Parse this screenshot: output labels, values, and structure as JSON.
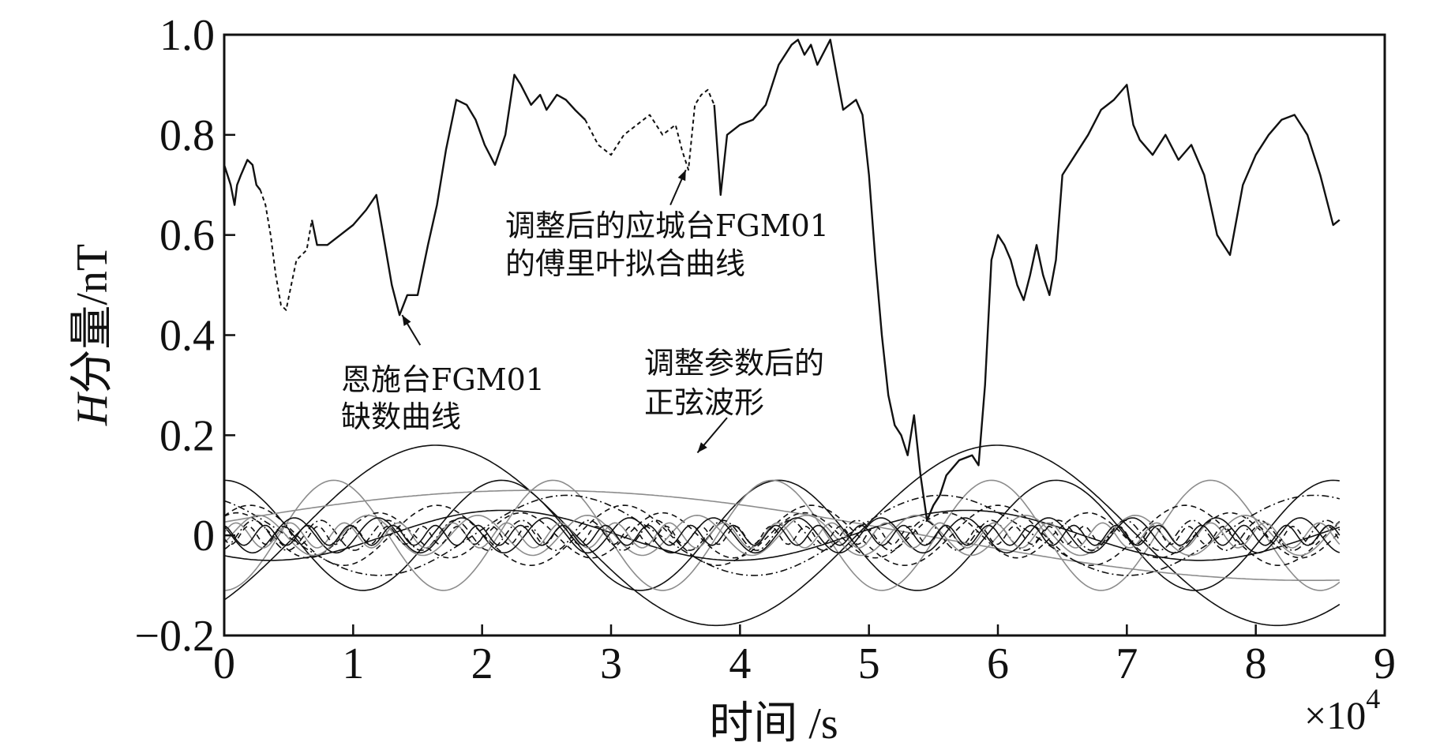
{
  "chart_data": {
    "type": "line",
    "title": "",
    "xlabel": "时间 /s",
    "ylabel_italic": "H",
    "ylabel_rest": "分量/nT",
    "x_multiplier_prefix": "×10",
    "x_multiplier_exp": "4",
    "xlim": [
      0,
      9
    ],
    "ylim": [
      -0.2,
      1.0
    ],
    "xticks": [
      0,
      1,
      2,
      3,
      4,
      5,
      6,
      7,
      8,
      9
    ],
    "xtick_labels": [
      "0",
      "1",
      "2",
      "3",
      "4",
      "5",
      "6",
      "7",
      "8",
      "9"
    ],
    "yticks": [
      -0.2,
      0,
      0.2,
      0.4,
      0.6,
      0.8,
      1.0
    ],
    "ytick_labels": [
      "−0.2",
      "0",
      "0.2",
      "0.4",
      "0.6",
      "0.8",
      "1.0"
    ],
    "grid": false,
    "legend": "none",
    "annotations": [
      {
        "lines": [
          "调整后的应城台FGM01",
          "的傅里叶拟合曲线"
        ],
        "arrow_to": [
          3.58,
          0.73
        ]
      },
      {
        "lines": [
          "恩施台FGM01",
          "缺数曲线"
        ],
        "arrow_to": [
          1.38,
          0.44
        ]
      },
      {
        "lines": [
          "调整参数后的",
          "正弦波形"
        ],
        "arrow_to": [
          3.67,
          0.165
        ]
      }
    ],
    "series": [
      {
        "role": "main-observed",
        "style": "solid-black",
        "x": [
          0,
          0.05,
          0.08,
          0.1,
          0.13,
          0.18,
          0.22,
          0.25,
          0.28
        ],
        "y": [
          0.74,
          0.7,
          0.66,
          0.7,
          0.72,
          0.75,
          0.74,
          0.7,
          0.69
        ]
      },
      {
        "role": "fourier-fit",
        "style": "dashed-black",
        "x": [
          0.28,
          0.32,
          0.36,
          0.4,
          0.44,
          0.48,
          0.52,
          0.56,
          0.6,
          0.64,
          0.68
        ],
        "y": [
          0.69,
          0.66,
          0.6,
          0.52,
          0.46,
          0.45,
          0.5,
          0.55,
          0.56,
          0.57,
          0.63
        ]
      },
      {
        "role": "main-observed",
        "style": "solid-black",
        "x": [
          0.68,
          0.72,
          0.8,
          0.9,
          1.0,
          1.1,
          1.18,
          1.22,
          1.3,
          1.36,
          1.42,
          1.5,
          1.58,
          1.65,
          1.72,
          1.8,
          1.88,
          1.95,
          2.02,
          2.1,
          2.18,
          2.25,
          2.3,
          2.38,
          2.45,
          2.5,
          2.58,
          2.65,
          2.72,
          2.8
        ],
        "y": [
          0.63,
          0.58,
          0.58,
          0.6,
          0.62,
          0.65,
          0.68,
          0.62,
          0.5,
          0.44,
          0.48,
          0.48,
          0.58,
          0.66,
          0.77,
          0.87,
          0.86,
          0.83,
          0.78,
          0.74,
          0.8,
          0.92,
          0.9,
          0.86,
          0.88,
          0.85,
          0.88,
          0.87,
          0.85,
          0.83
        ]
      },
      {
        "role": "fourier-fit",
        "style": "dashed-black",
        "x": [
          2.8,
          2.9,
          3.0,
          3.1,
          3.2,
          3.3,
          3.4,
          3.5,
          3.55,
          3.6,
          3.65,
          3.7,
          3.75,
          3.8
        ],
        "y": [
          0.83,
          0.78,
          0.76,
          0.8,
          0.82,
          0.84,
          0.8,
          0.82,
          0.77,
          0.73,
          0.86,
          0.88,
          0.89,
          0.86
        ]
      },
      {
        "role": "main-observed",
        "style": "solid-black",
        "x": [
          3.8,
          3.85,
          3.9,
          4.0,
          4.1,
          4.2,
          4.3,
          4.4,
          4.45,
          4.5,
          4.55,
          4.6,
          4.7,
          4.75,
          4.8,
          4.9,
          4.95,
          5.0,
          5.05,
          5.1,
          5.15,
          5.2,
          5.25,
          5.3,
          5.35,
          5.4,
          5.45,
          5.5,
          5.55,
          5.6,
          5.7,
          5.8,
          5.85,
          5.9,
          5.95,
          6.0,
          6.05,
          6.1,
          6.15,
          6.2,
          6.25,
          6.3,
          6.35,
          6.4,
          6.45,
          6.5,
          6.6,
          6.7,
          6.8,
          6.9,
          7.0,
          7.05,
          7.1,
          7.2,
          7.3,
          7.4,
          7.5,
          7.6,
          7.7,
          7.8,
          7.9,
          8.0,
          8.1,
          8.2,
          8.3,
          8.4,
          8.5,
          8.6,
          8.65
        ],
        "y": [
          0.86,
          0.68,
          0.8,
          0.82,
          0.83,
          0.86,
          0.94,
          0.98,
          0.99,
          0.96,
          0.98,
          0.94,
          0.99,
          0.92,
          0.85,
          0.87,
          0.84,
          0.72,
          0.55,
          0.4,
          0.28,
          0.22,
          0.2,
          0.16,
          0.24,
          0.12,
          0.03,
          0.06,
          0.08,
          0.12,
          0.15,
          0.16,
          0.14,
          0.3,
          0.55,
          0.6,
          0.58,
          0.55,
          0.5,
          0.47,
          0.52,
          0.58,
          0.52,
          0.48,
          0.55,
          0.72,
          0.76,
          0.8,
          0.85,
          0.87,
          0.9,
          0.82,
          0.79,
          0.76,
          0.8,
          0.75,
          0.78,
          0.72,
          0.6,
          0.56,
          0.7,
          0.76,
          0.8,
          0.83,
          0.84,
          0.8,
          0.72,
          0.62,
          0.63
        ]
      }
    ],
    "sine_components": [
      {
        "amplitude": 0.18,
        "period": 4.35,
        "phase": -0.8,
        "style": "solid-black"
      },
      {
        "amplitude": 0.11,
        "period": 2.15,
        "phase": 1.57,
        "style": "solid-black"
      },
      {
        "amplitude": 0.09,
        "period": 12.0,
        "phase": 0.3,
        "style": "solid-gray"
      },
      {
        "amplitude": 0.11,
        "period": 1.7,
        "phase": -1.57,
        "style": "solid-gray"
      },
      {
        "amplitude": 0.08,
        "period": 2.9,
        "phase": 2.1,
        "style": "dashdot-black"
      },
      {
        "amplitude": 0.06,
        "period": 1.45,
        "phase": 0.7,
        "style": "dashed-black"
      },
      {
        "amplitude": 0.05,
        "period": 3.6,
        "phase": -2.2,
        "style": "solid-black"
      },
      {
        "amplitude": 0.045,
        "period": 1.1,
        "phase": 1.0,
        "style": "dashed-black"
      },
      {
        "amplitude": 0.04,
        "period": 0.85,
        "phase": -0.4,
        "style": "solid-gray"
      },
      {
        "amplitude": 0.035,
        "period": 0.65,
        "phase": 2.6,
        "style": "solid-black"
      },
      {
        "amplitude": 0.03,
        "period": 0.52,
        "phase": -1.2,
        "style": "dashdot-black"
      },
      {
        "amplitude": 0.025,
        "period": 0.42,
        "phase": 0.2,
        "style": "solid-gray"
      },
      {
        "amplitude": 0.02,
        "period": 0.33,
        "phase": 1.8,
        "style": "solid-black"
      },
      {
        "amplitude": 0.018,
        "period": 0.27,
        "phase": -2.8,
        "style": "dashed-black"
      }
    ],
    "colors": {
      "primary": "#111111",
      "secondary": "#8c8c8c"
    }
  }
}
